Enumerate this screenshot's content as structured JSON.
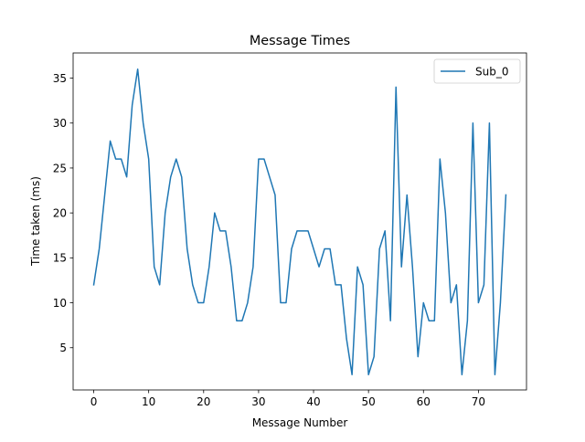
{
  "chart_data": {
    "type": "line",
    "title": "Message Times",
    "xlabel": "Message Number",
    "ylabel": "Time taken (ms)",
    "xlim": [
      -3.75,
      78.75
    ],
    "ylim": [
      0.3,
      37.8
    ],
    "xticks": [
      0,
      10,
      20,
      30,
      40,
      50,
      60,
      70
    ],
    "yticks": [
      5,
      10,
      15,
      20,
      25,
      30,
      35
    ],
    "grid": false,
    "legend_position": "top-right",
    "series": [
      {
        "name": "Sub_0",
        "color": "#1f77b4",
        "x": [
          0,
          1,
          2,
          3,
          4,
          5,
          6,
          7,
          8,
          9,
          10,
          11,
          12,
          13,
          14,
          15,
          16,
          17,
          18,
          19,
          20,
          21,
          22,
          23,
          24,
          25,
          26,
          27,
          28,
          29,
          30,
          31,
          32,
          33,
          34,
          35,
          36,
          37,
          38,
          39,
          40,
          41,
          42,
          43,
          44,
          45,
          46,
          47,
          48,
          49,
          50,
          51,
          52,
          53,
          54,
          55,
          56,
          57,
          58,
          59,
          60,
          61,
          62,
          63,
          64,
          65,
          66,
          67,
          68,
          69,
          70,
          71,
          72,
          73,
          74,
          75
        ],
        "values": [
          12,
          16,
          22,
          28,
          26,
          26,
          24,
          32,
          36,
          30,
          26,
          14,
          12,
          20,
          24,
          26,
          24,
          16,
          12,
          10,
          10,
          14,
          20,
          18,
          18,
          14,
          8,
          8,
          10,
          14,
          26,
          26,
          24,
          22,
          10,
          10,
          16,
          18,
          18,
          18,
          16,
          14,
          16,
          16,
          12,
          12,
          6,
          2,
          14,
          12,
          2,
          4,
          16,
          18,
          8,
          34,
          14,
          22,
          14,
          4,
          10,
          8,
          8,
          26,
          20,
          10,
          12,
          2,
          8,
          30,
          10,
          12,
          30,
          2,
          10,
          22
        ]
      }
    ]
  }
}
